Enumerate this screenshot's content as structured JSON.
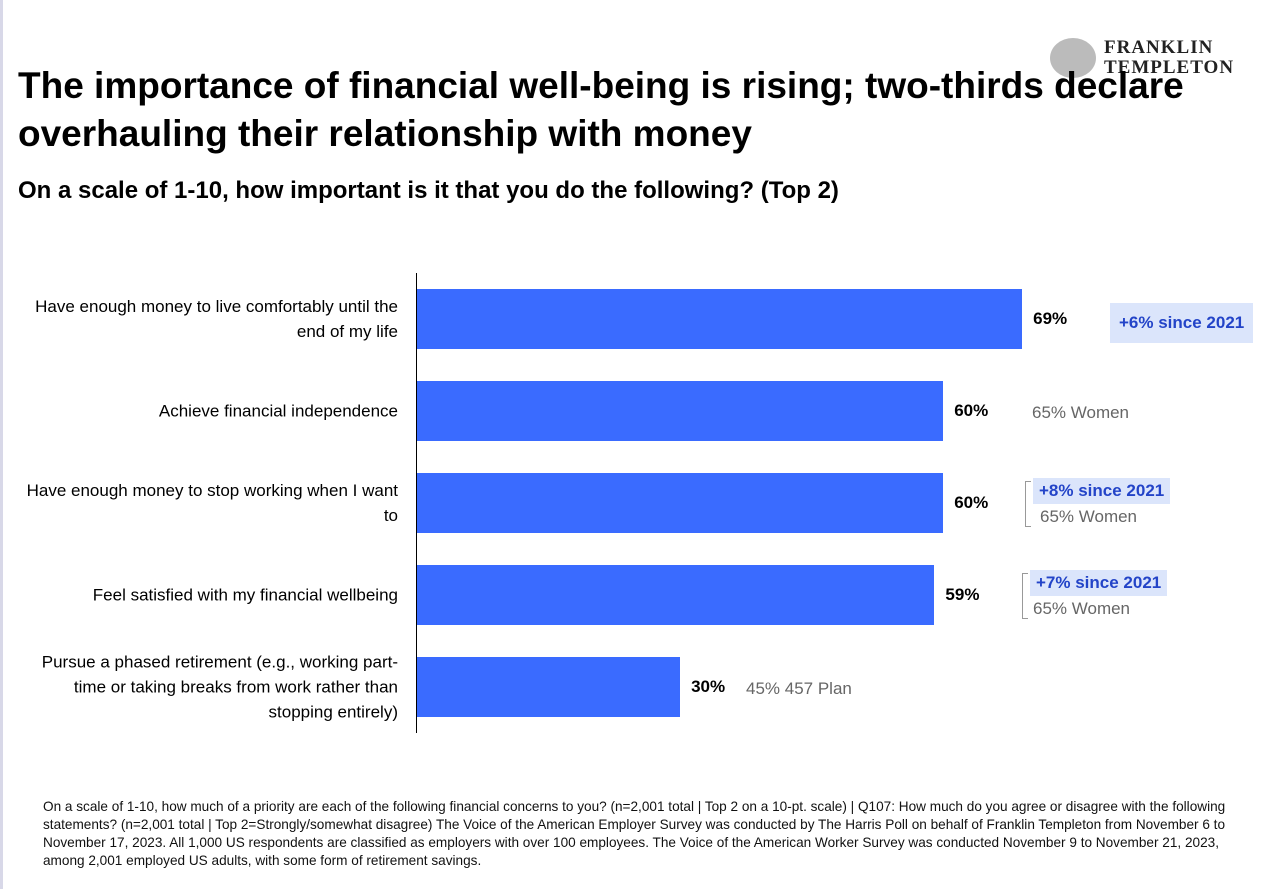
{
  "logo": "FRANKLIN TEMPLETON",
  "chart_data": {
    "type": "bar",
    "orientation": "horizontal",
    "title": "The importance of financial well-being is rising; two-thirds declare overhauling their relationship with money",
    "subtitle": "On a scale of 1-10, how important is it that you do the following? (Top 2)",
    "categories": [
      "Have enough money to live comfortably until the end of my life",
      "Achieve financial independence",
      "Have enough money to stop working when I want to",
      "Feel satisfied with my financial wellbeing",
      "Pursue a phased retirement (e.g., working part-time or taking breaks from work rather than stopping entirely)"
    ],
    "values": [
      69,
      60,
      60,
      59,
      30
    ],
    "value_labels": [
      "69%",
      "60%",
      "60%",
      "59%",
      "30%"
    ],
    "color": "#3a6bff",
    "highlights": [
      "+6% since 2021",
      null,
      "+8% since 2021",
      "+7% since 2021",
      null
    ],
    "notes": [
      null,
      "65% Women",
      "65% Women",
      "65% Women",
      "45% 457 Plan"
    ],
    "footnote": "On a scale of 1-10, how much of a priority are each of the following financial concerns to you? (n=2,001 total | Top 2 on a 10-pt. scale) | Q107: How much do you agree or disagree with the following statements? (n=2,001 total | Top 2=Strongly/somewhat disagree) The Voice of the American Employer Survey was conducted by The Harris Poll on behalf of Franklin Templeton from November 6 to November 17, 2023. All 1,000 US respondents are classified as employers with over 100 employees. The Voice of the American Worker Survey was conducted November 9 to November 21, 2023, among 2,001 employed US adults, with some form of retirement savings."
  }
}
